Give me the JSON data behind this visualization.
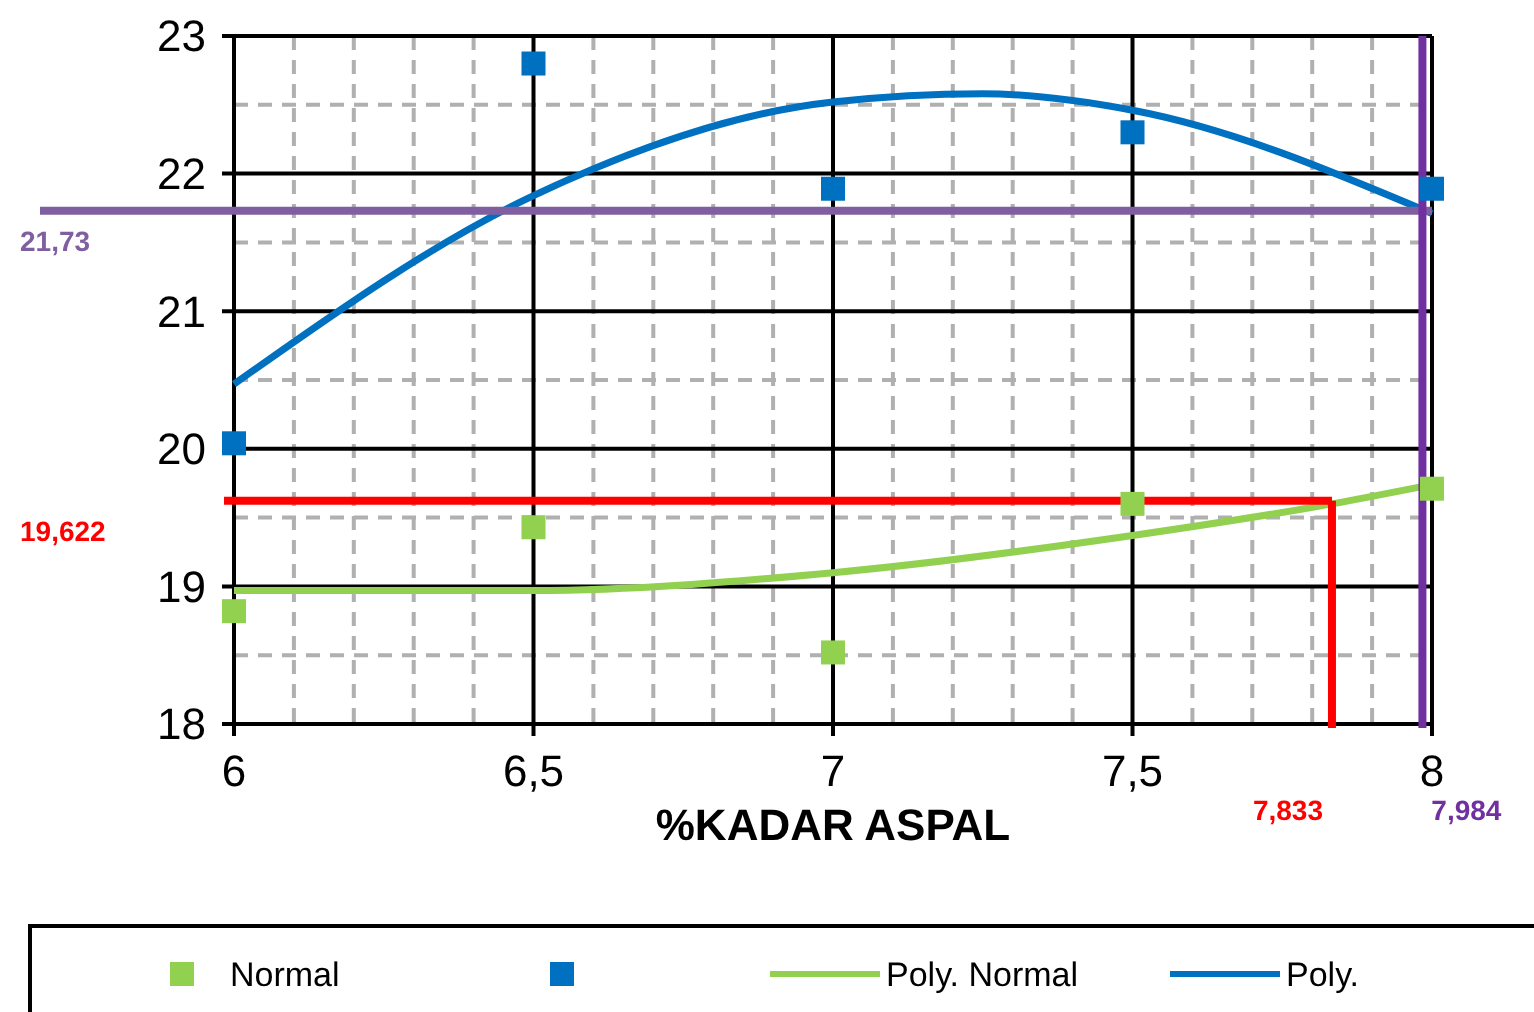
{
  "chart_data": {
    "type": "scatter",
    "xlabel": "%KADAR ASPAL",
    "xlim": [
      6,
      8
    ],
    "xticks": [
      6,
      {
        "value": 6.5,
        "label": "6,5"
      },
      7,
      {
        "value": 7.5,
        "label": "7,5"
      },
      8
    ],
    "ylim": [
      18,
      23
    ],
    "yticks": [
      18,
      19,
      20,
      21,
      22,
      23
    ],
    "grid": true,
    "legend": "bottom",
    "marker": "square",
    "series": [
      {
        "name": "Normal",
        "color": "#92d050",
        "x": [
          6,
          6.5,
          7,
          7.5,
          8
        ],
        "values": [
          18.82,
          19.43,
          18.52,
          19.6,
          19.71
        ]
      },
      {
        "color": "#0070c0",
        "x": [
          6,
          6.5,
          7,
          7.5,
          8
        ],
        "values": [
          20.04,
          22.8,
          21.89,
          22.3,
          21.89
        ]
      },
      {
        "name": "Poly. Normal",
        "type": "line",
        "marker": "none",
        "color": "#92d050",
        "x": [
          6,
          6.5,
          7,
          7.5,
          7.833,
          8
        ],
        "values": [
          18.97,
          18.97,
          19.1,
          19.37,
          19.6,
          19.74
        ]
      },
      {
        "name": "Poly.",
        "type": "line",
        "marker": "none",
        "color": "#0070c0",
        "x": [
          6,
          6.5,
          7,
          7.25,
          7.5,
          8
        ],
        "values": [
          20.47,
          21.84,
          22.52,
          22.58,
          22.46,
          21.71
        ]
      }
    ],
    "ref_lines": [
      {
        "axis": "y",
        "value": 19.622,
        "label": "19,622",
        "color": "#ff0000"
      },
      {
        "axis": "x",
        "value": 7.833,
        "label": "7,833",
        "color": "#ff0000"
      },
      {
        "axis": "y",
        "value": 21.73,
        "label": "21,73",
        "color": "#7f5fa0"
      },
      {
        "axis": "x",
        "value": 7.984,
        "label": "7,984",
        "color": "#7030a0"
      }
    ]
  }
}
